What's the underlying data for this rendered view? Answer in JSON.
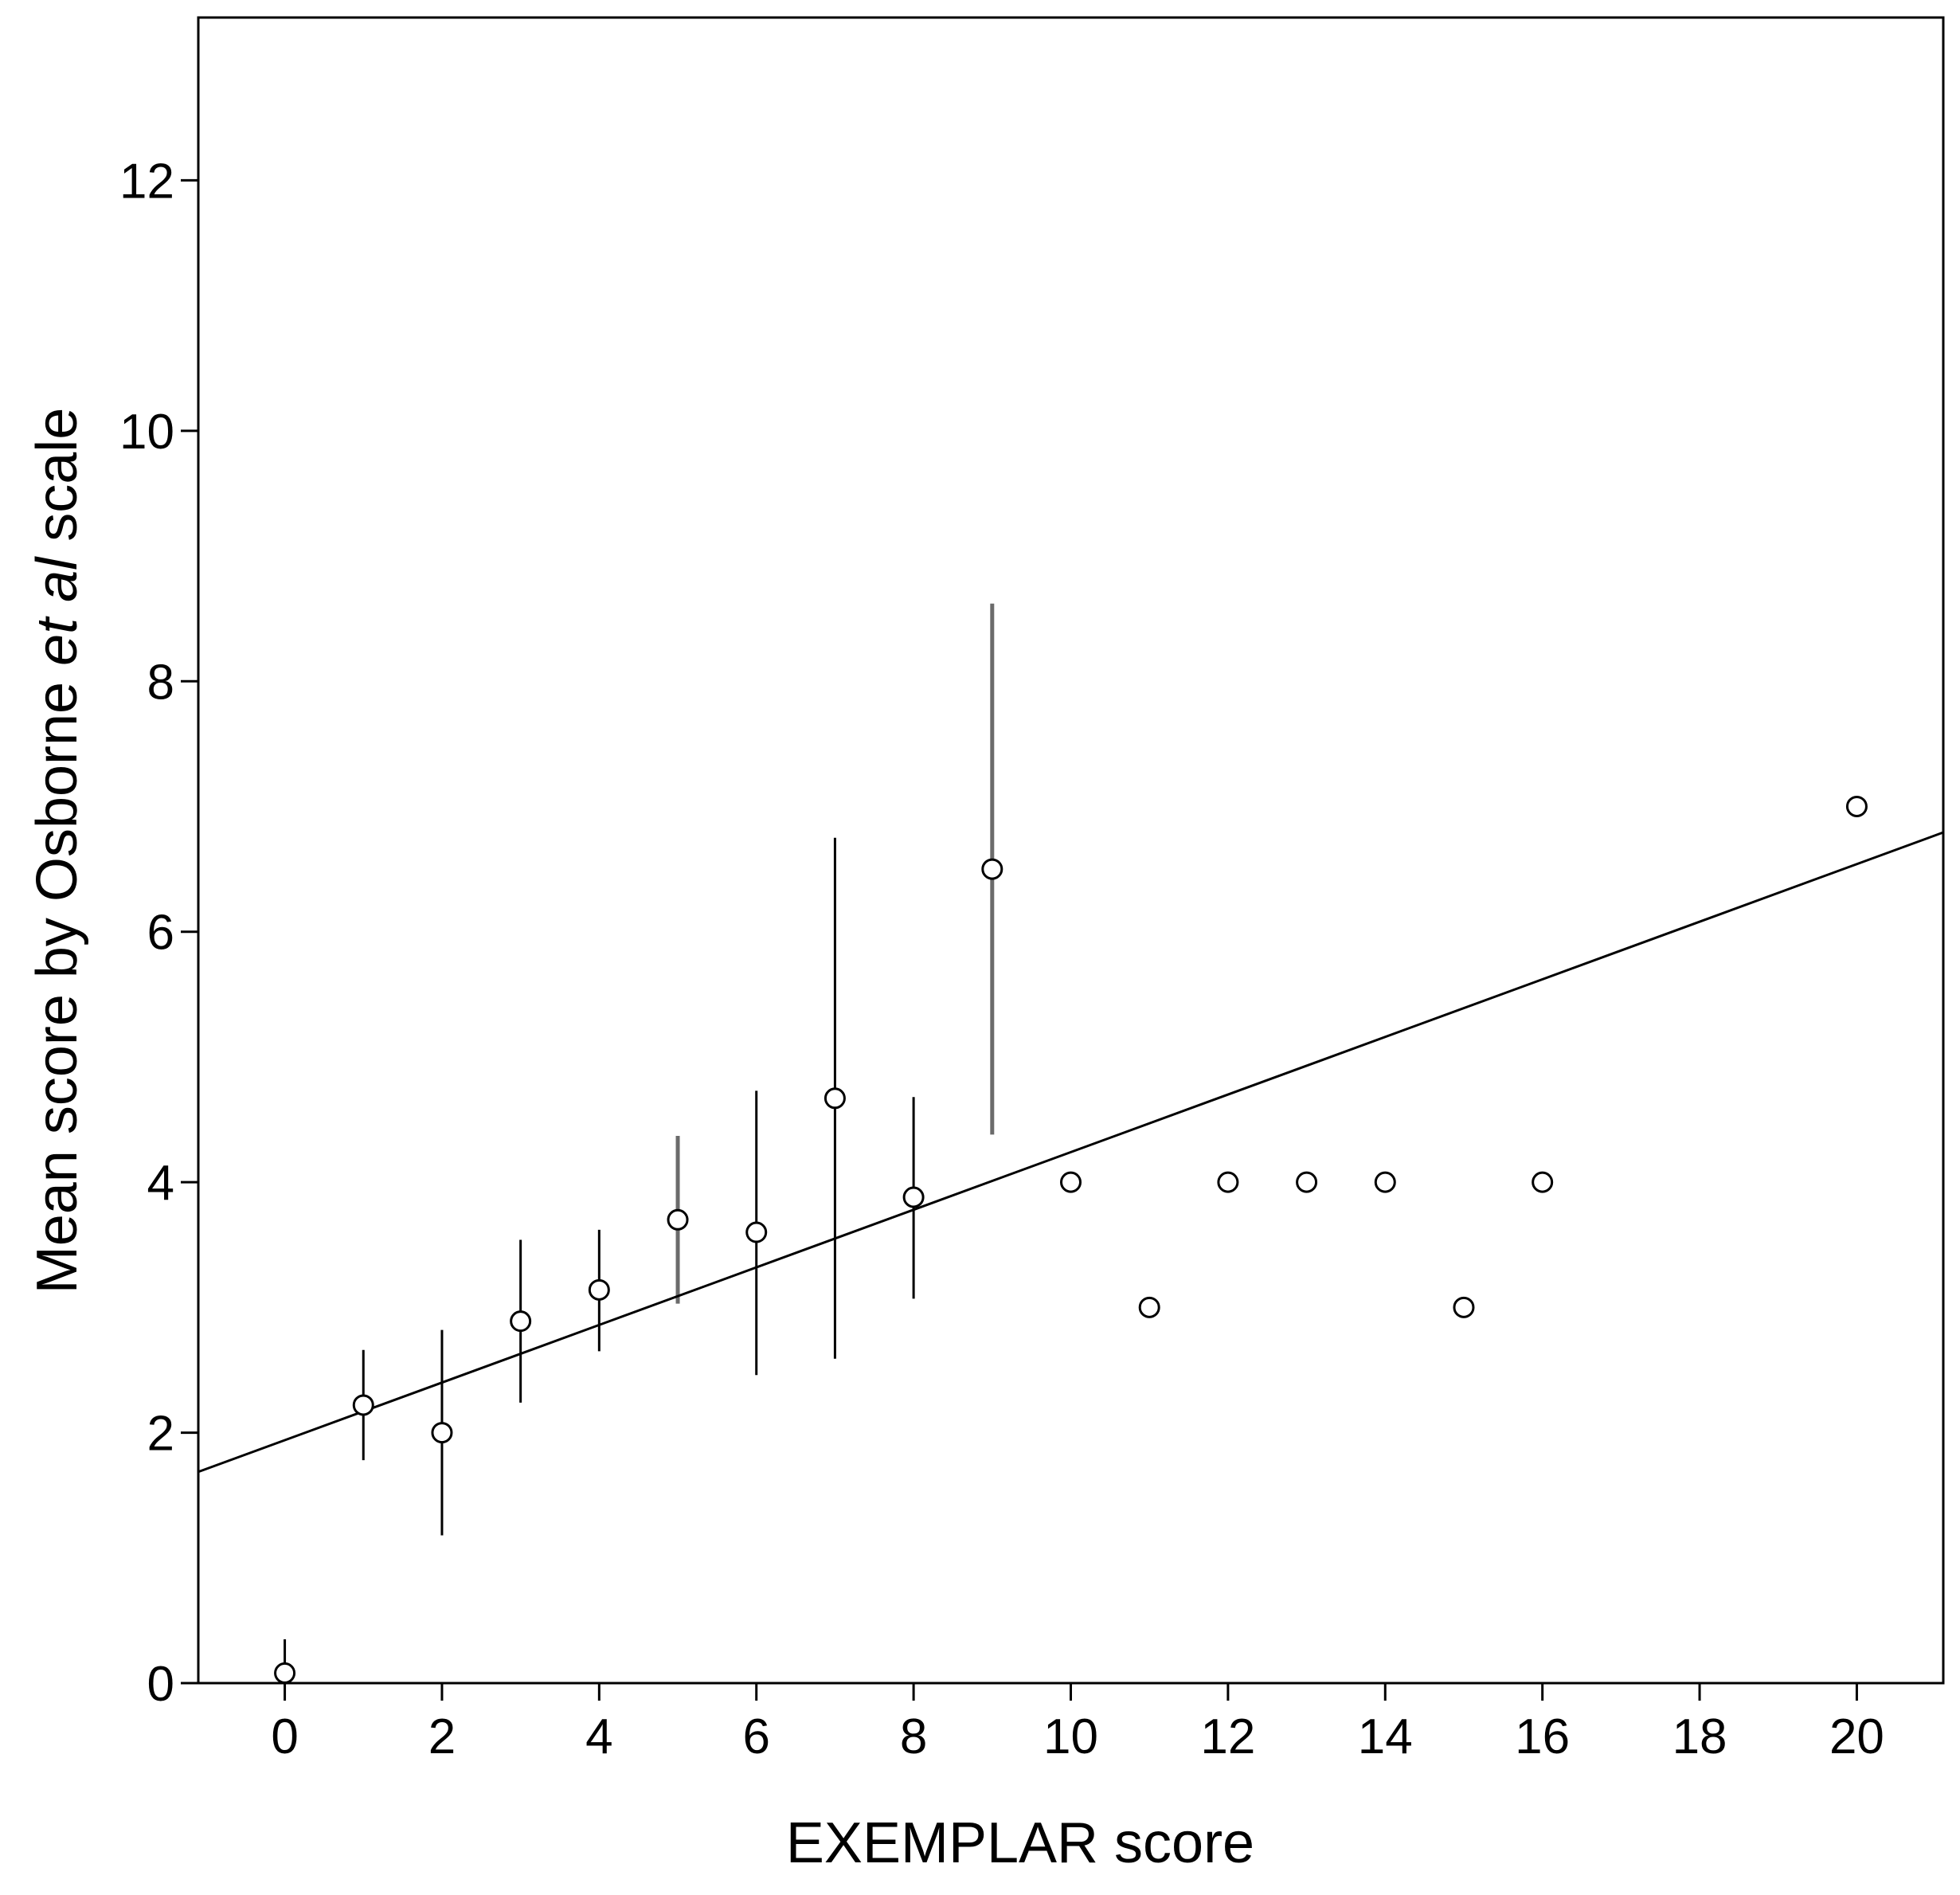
{
  "chart_data": {
    "type": "scatter",
    "xlabel": "EXEMPLAR score",
    "ylabel": {
      "parts": [
        {
          "text": "Mean score by Osborne ",
          "italic": false
        },
        {
          "text": "et al",
          "italic": true
        },
        {
          "text": " scale",
          "italic": false
        }
      ]
    },
    "xlim": [
      -1.1,
      21.1
    ],
    "ylim": [
      0,
      13.3
    ],
    "xticks": [
      "0",
      "2",
      "4",
      "6",
      "8",
      "10",
      "12",
      "14",
      "16",
      "18",
      "20"
    ],
    "yticks": [
      "0",
      "2",
      "4",
      "6",
      "8",
      "10",
      "12"
    ],
    "grid": false,
    "points": [
      {
        "x": 0,
        "y": 0.08,
        "err_low": -0.05,
        "err_high": 0.35
      },
      {
        "x": 1,
        "y": 2.22,
        "err_low": 1.78,
        "err_high": 2.66
      },
      {
        "x": 2,
        "y": 2.0,
        "err_low": 1.18,
        "err_high": 2.82
      },
      {
        "x": 3,
        "y": 2.89,
        "err_low": 2.24,
        "err_high": 3.54
      },
      {
        "x": 4,
        "y": 3.14,
        "err_low": 2.65,
        "err_high": 3.62
      },
      {
        "x": 5,
        "y": 3.7,
        "err_low": 3.03,
        "err_high": 4.37
      },
      {
        "x": 6,
        "y": 3.6,
        "err_low": 2.46,
        "err_high": 4.73
      },
      {
        "x": 7,
        "y": 4.67,
        "err_low": 2.59,
        "err_high": 6.75
      },
      {
        "x": 8,
        "y": 3.88,
        "err_low": 3.07,
        "err_high": 4.68
      },
      {
        "x": 9,
        "y": 6.5,
        "err_low": 4.38,
        "err_high": 8.62
      },
      {
        "x": 10,
        "y": 4.0
      },
      {
        "x": 11,
        "y": 3.0
      },
      {
        "x": 12,
        "y": 4.0
      },
      {
        "x": 13,
        "y": 4.0
      },
      {
        "x": 14,
        "y": 4.0
      },
      {
        "x": 15,
        "y": 3.0
      },
      {
        "x": 16,
        "y": 4.0
      },
      {
        "x": 20,
        "y": 7.0
      }
    ],
    "fit_line": {
      "intercept": 1.94,
      "slope": 0.23
    },
    "colors": {
      "axis": "#000000",
      "marker": "#000000",
      "fit_line": "#000000",
      "error_bar_main": "#000000",
      "error_bar_alt": "#6b6b6b"
    }
  }
}
